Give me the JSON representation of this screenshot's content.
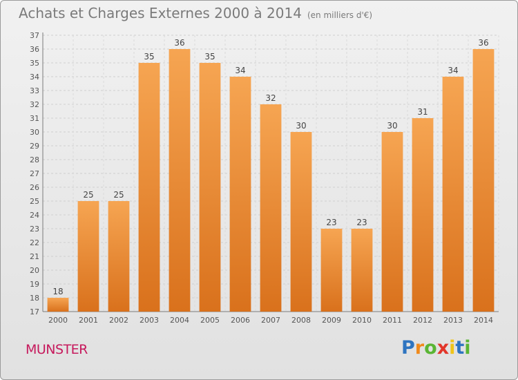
{
  "header": {
    "title": "Achats et Charges Externes 2000 à 2014",
    "unit": "(en milliers d'€)"
  },
  "footer": {
    "commune": "MUNSTER",
    "brand": [
      "P",
      "r",
      "o",
      "x",
      "i",
      "t",
      "i"
    ]
  },
  "colors": {
    "bar_light": "#f6a552",
    "bar_dark": "#d9711c",
    "commune": "#c6195c",
    "brand": [
      "#2e74c0",
      "#f08a1c",
      "#5ab534",
      "#e2362a",
      "#f0c419",
      "#2e74c0",
      "#5ab534"
    ]
  },
  "chart_data": {
    "type": "bar",
    "categories": [
      "2000",
      "2001",
      "2002",
      "2003",
      "2004",
      "2005",
      "2006",
      "2007",
      "2008",
      "2009",
      "2010",
      "2011",
      "2012",
      "2013",
      "2014"
    ],
    "values": [
      18,
      25,
      25,
      35,
      36,
      35,
      34,
      32,
      30,
      23,
      23,
      30,
      31,
      34,
      36
    ],
    "ylim": [
      17,
      37
    ],
    "yticks": [
      17,
      18,
      19,
      20,
      21,
      22,
      23,
      24,
      25,
      26,
      27,
      28,
      29,
      30,
      31,
      32,
      33,
      34,
      35,
      36,
      37
    ],
    "grid": true
  }
}
